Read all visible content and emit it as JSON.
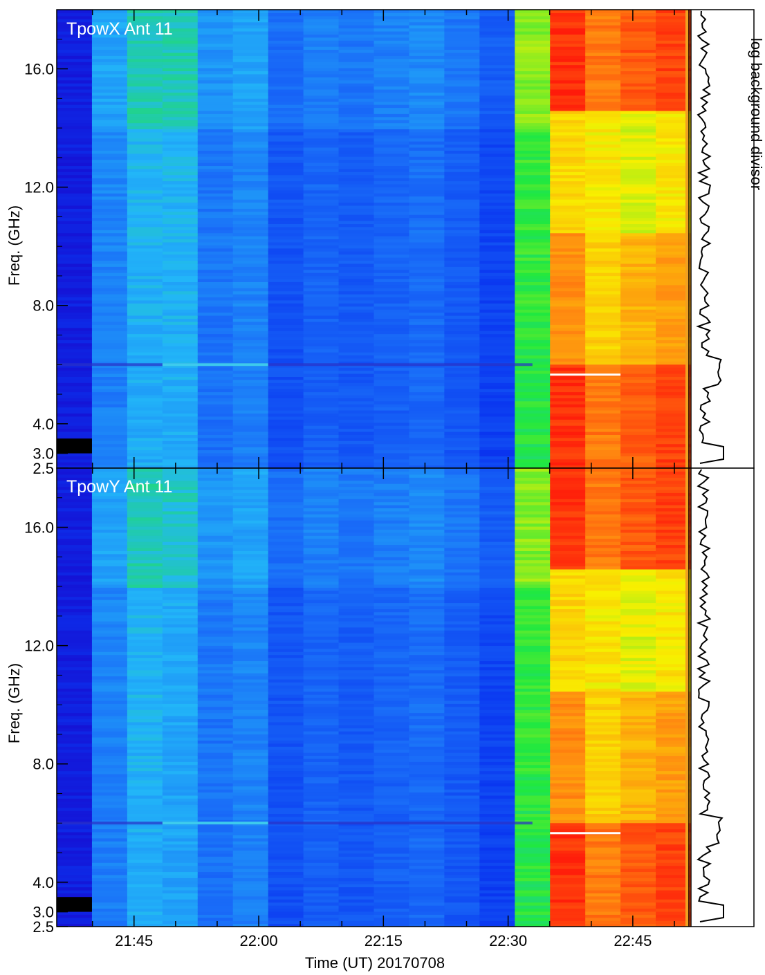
{
  "chart_data": [
    {
      "type": "heatmap",
      "title": "TpowX Ant 11",
      "ylabel": "Freq. (GHz)",
      "xlabel": "",
      "ylim": [
        2.5,
        18.0
      ],
      "yticks": [
        {
          "value": 2.5,
          "label": "2.5"
        },
        {
          "value": 3.0,
          "label": "3.0"
        },
        {
          "value": 4.0,
          "label": "4.0"
        },
        {
          "value": 8.0,
          "label": "8.0"
        },
        {
          "value": 12.0,
          "label": "12.0"
        },
        {
          "value": 16.0,
          "label": "16.0"
        }
      ],
      "side_panel_label": "log background divisor",
      "colormap": [
        "#1a00c8",
        "#0a36f0",
        "#1a6ef8",
        "#22b6f8",
        "#20e840",
        "#f8f000",
        "#ff8c10",
        "#ff1a0a"
      ],
      "time_columns": [
        "21:38",
        "21:42",
        "21:46",
        "21:50",
        "21:54",
        "21:58",
        "22:02",
        "22:06",
        "22:10",
        "22:14",
        "22:18",
        "22:22",
        "22:26",
        "22:30",
        "22:34",
        "22:38",
        "22:42",
        "22:46"
      ],
      "column_intensity": [
        0.08,
        0.33,
        0.42,
        0.42,
        0.3,
        0.33,
        0.22,
        0.26,
        0.24,
        0.26,
        0.28,
        0.24,
        0.18,
        0.58,
        0.97,
        0.88,
        0.92,
        0.95
      ],
      "features": [
        {
          "name": "dark band",
          "freq_range": [
            3.0,
            3.5
          ]
        },
        {
          "name": "interference line",
          "freq": 6.0
        }
      ]
    },
    {
      "type": "heatmap",
      "title": "TpowY Ant 11",
      "xlabel": "Time (UT) 20170708",
      "ylabel": "Freq. (GHz)",
      "ylim": [
        2.5,
        18.0
      ],
      "yticks": [
        {
          "value": 2.5,
          "label": "2.5"
        },
        {
          "value": 3.0,
          "label": "3.0"
        },
        {
          "value": 4.0,
          "label": "4.0"
        },
        {
          "value": 8.0,
          "label": "8.0"
        },
        {
          "value": 12.0,
          "label": "12.0"
        },
        {
          "value": 16.0,
          "label": "16.0"
        }
      ],
      "xticks": [
        "21:45",
        "22:00",
        "22:15",
        "22:30",
        "22:45"
      ],
      "colormap": [
        "#1a00c8",
        "#0a36f0",
        "#1a6ef8",
        "#22b6f8",
        "#20e840",
        "#f8f000",
        "#ff8c10",
        "#ff1a0a"
      ],
      "time_columns": [
        "21:38",
        "21:42",
        "21:46",
        "21:50",
        "21:54",
        "21:58",
        "22:02",
        "22:06",
        "22:10",
        "22:14",
        "22:18",
        "22:22",
        "22:26",
        "22:30",
        "22:34",
        "22:38",
        "22:42",
        "22:46"
      ],
      "column_intensity": [
        0.08,
        0.33,
        0.42,
        0.4,
        0.3,
        0.33,
        0.22,
        0.26,
        0.24,
        0.26,
        0.28,
        0.24,
        0.18,
        0.58,
        0.97,
        0.88,
        0.92,
        0.95
      ],
      "features": [
        {
          "name": "dark band",
          "freq_range": [
            3.0,
            3.5
          ]
        },
        {
          "name": "interference line",
          "freq": 6.0
        }
      ]
    }
  ]
}
